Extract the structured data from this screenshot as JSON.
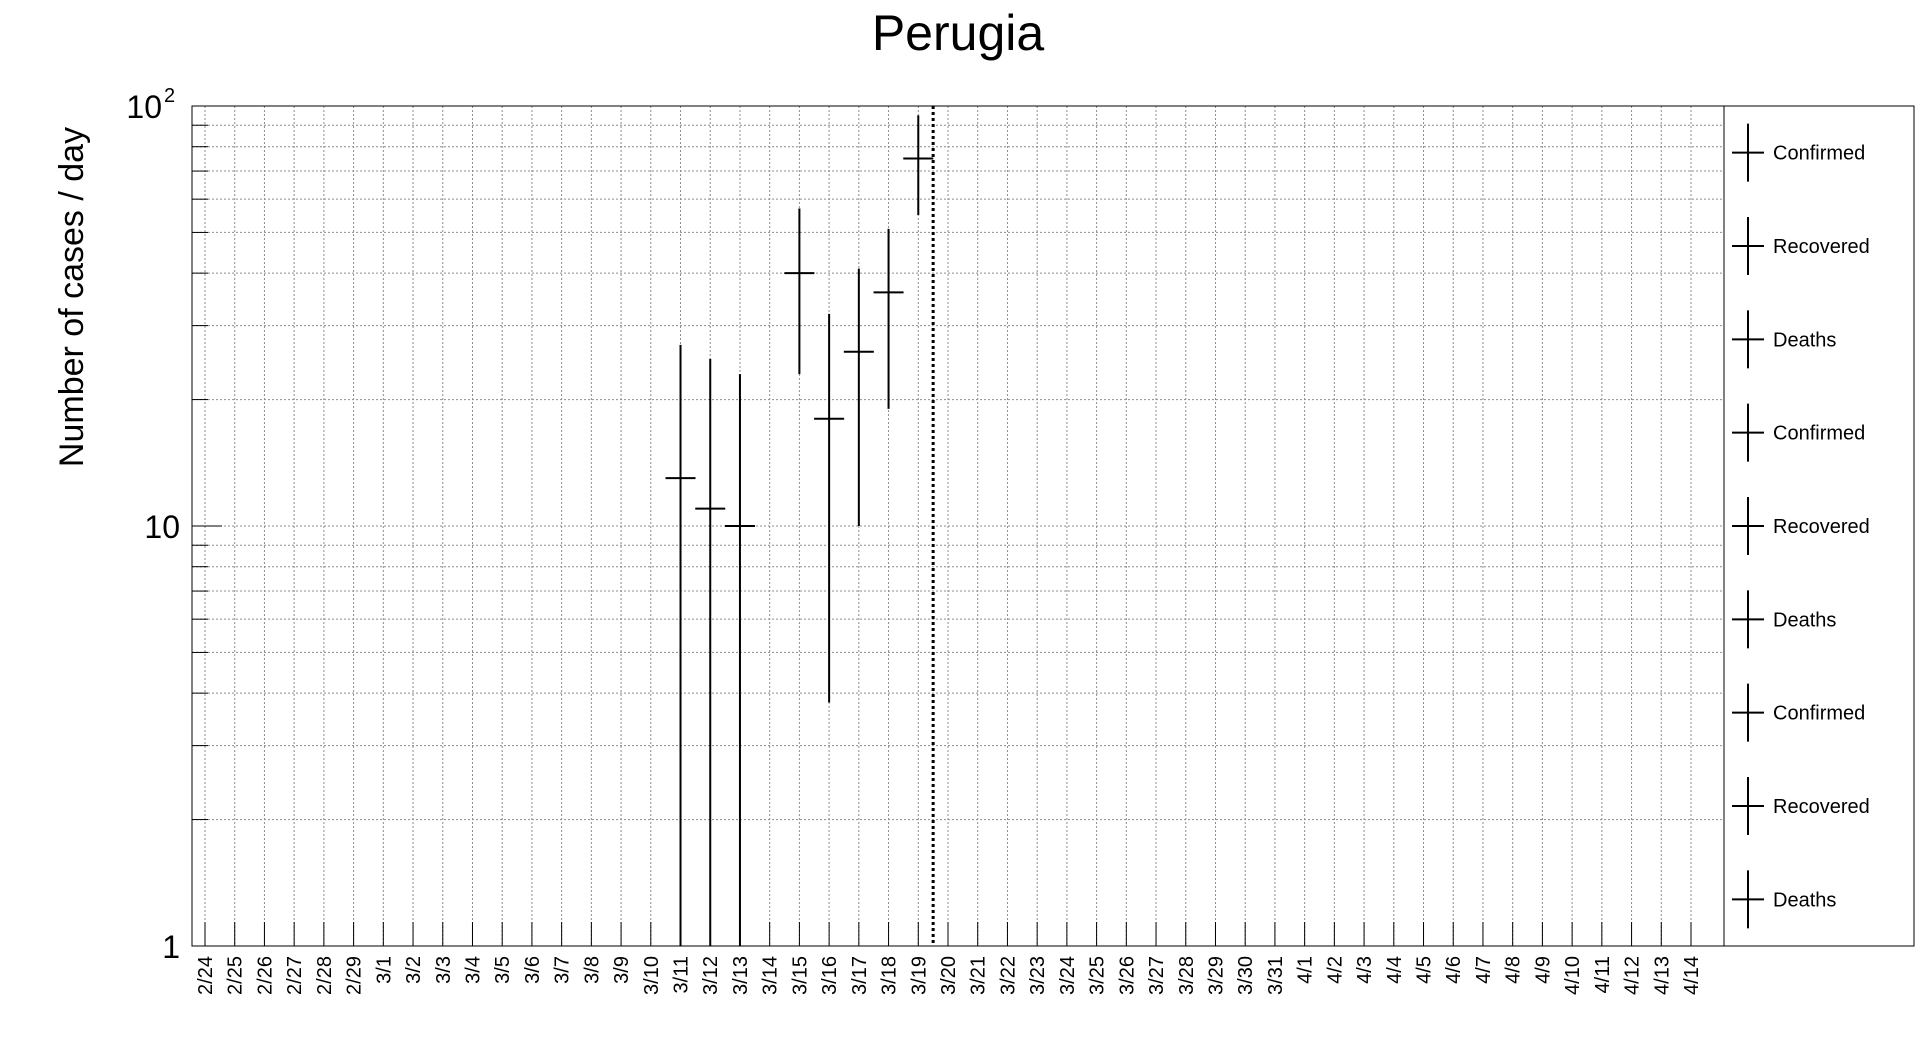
{
  "chart_data": {
    "type": "scatter",
    "title": "Perugia",
    "xlabel": "",
    "ylabel": "Number of cases / day",
    "y_scale": "log",
    "ylim": [
      1,
      100
    ],
    "y_tick_labels": [
      {
        "value": 1,
        "base": "1",
        "exp": ""
      },
      {
        "value": 10,
        "base": "10",
        "exp": ""
      },
      {
        "value": 100,
        "base": "10",
        "exp": "2"
      }
    ],
    "categories": [
      "2/24",
      "2/25",
      "2/26",
      "2/27",
      "2/28",
      "2/29",
      "3/1",
      "3/2",
      "3/3",
      "3/4",
      "3/5",
      "3/6",
      "3/7",
      "3/8",
      "3/9",
      "3/10",
      "3/11",
      "3/12",
      "3/13",
      "3/14",
      "3/15",
      "3/16",
      "3/17",
      "3/18",
      "3/19",
      "3/20",
      "3/21",
      "3/22",
      "3/23",
      "3/24",
      "3/25",
      "3/26",
      "3/27",
      "3/28",
      "3/29",
      "3/30",
      "3/31",
      "4/1",
      "4/2",
      "4/3",
      "4/4",
      "4/5",
      "4/6",
      "4/7",
      "4/8",
      "4/9",
      "4/10",
      "4/11",
      "4/12",
      "4/13",
      "4/14"
    ],
    "vertical_marker": {
      "between": [
        "3/19",
        "3/20"
      ],
      "style": "dotted"
    },
    "grid": true,
    "legend_position": "right",
    "series": [
      {
        "name": "Confirmed",
        "points": [
          {
            "x": "3/11",
            "y": 13,
            "y_low": 1,
            "y_high": 27
          },
          {
            "x": "3/12",
            "y": 11,
            "y_low": 1,
            "y_high": 25
          },
          {
            "x": "3/13",
            "y": 10,
            "y_low": 1,
            "y_high": 23
          },
          {
            "x": "3/15",
            "y": 40,
            "y_low": 23,
            "y_high": 57
          },
          {
            "x": "3/16",
            "y": 18,
            "y_low": 3.8,
            "y_high": 32
          },
          {
            "x": "3/17",
            "y": 26,
            "y_low": 10,
            "y_high": 41
          },
          {
            "x": "3/18",
            "y": 36,
            "y_low": 19,
            "y_high": 51
          },
          {
            "x": "3/19",
            "y": 75,
            "y_low": 55,
            "y_high": 95
          }
        ]
      }
    ],
    "legend_entries": [
      "Confirmed",
      "Recovered",
      "Deaths",
      "Confirmed",
      "Recovered",
      "Deaths",
      "Confirmed",
      "Recovered",
      "Deaths"
    ]
  }
}
